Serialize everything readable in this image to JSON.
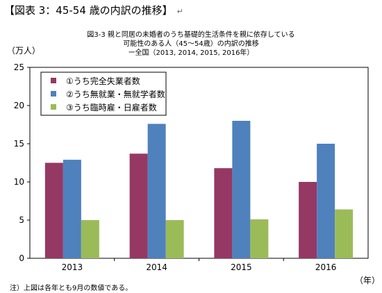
{
  "heading": {
    "text": "【図表 3：45-54 歳の内訳の推移】",
    "mark": "↵"
  },
  "chart_data": {
    "type": "bar",
    "title_lines": [
      "図3-3  親と同居の未婚者のうち基礎的生活条件を親に依存している",
      "可能性のある人（45～54歳）の内訳の推移",
      "ー全国（2013, 2014, 2015, 2016年）"
    ],
    "ylabel": "（万人）",
    "xlabel": "（年）",
    "ylim": [
      0,
      25
    ],
    "yticks": [
      "0",
      "5",
      "10",
      "15",
      "20",
      "25"
    ],
    "categories": [
      "2013",
      "2014",
      "2015",
      "2016"
    ],
    "series": [
      {
        "name": "①うち完全失業者数",
        "color": "#953864",
        "values": [
          12.5,
          13.7,
          11.8,
          10.0
        ]
      },
      {
        "name": "②うち無就業・無就学者数",
        "color": "#4f81bd",
        "values": [
          12.9,
          17.6,
          18.0,
          15.0
        ]
      },
      {
        "name": "③うち臨時雇・日雇者数",
        "color": "#9bbb59",
        "values": [
          5.0,
          5.0,
          5.1,
          6.4
        ]
      }
    ],
    "legend_position": "top-left",
    "grid": false
  },
  "note": "注）上図は各年とも9月の数値である。"
}
